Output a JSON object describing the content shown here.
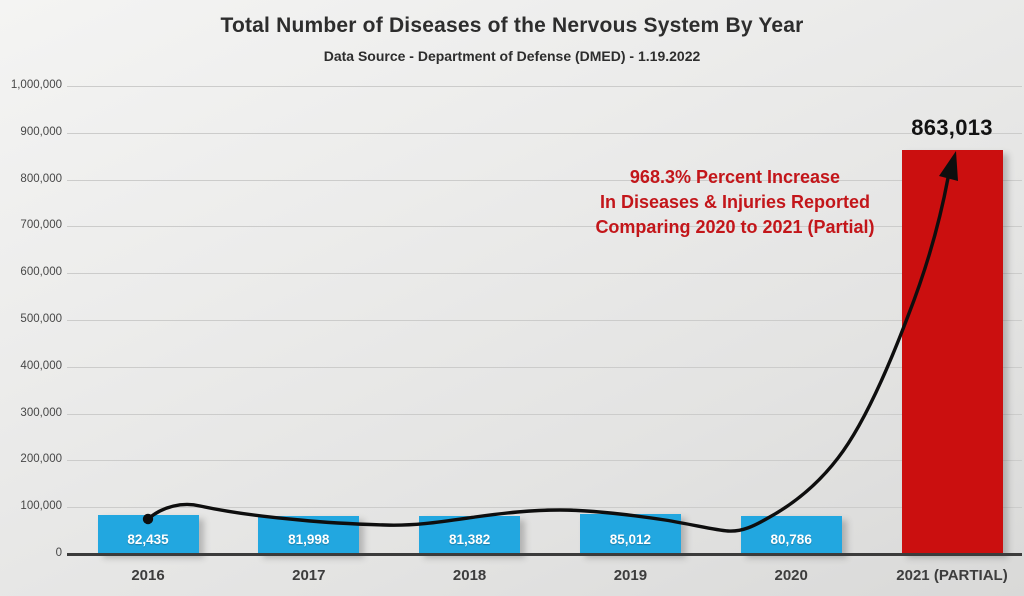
{
  "header": {
    "title": "Total Number of Diseases of the Nervous System By Year",
    "subtitle": "Data Source - Department of Defense (DMED) - 1.19.2022"
  },
  "annotation": {
    "line1": "968.3% Percent Increase",
    "line2": "In Diseases & Injuries Reported",
    "line3": "Comparing 2020 to 2021 (Partial)",
    "color": "#c3161a"
  },
  "peak_label": "863,013",
  "chart_data": {
    "type": "bar",
    "title": "Total Number of Diseases of the Nervous System By Year",
    "subtitle": "Data Source - Department of Defense (DMED) - 1.19.2022",
    "categories": [
      "2016",
      "2017",
      "2018",
      "2019",
      "2020",
      "2021 (PARTIAL)"
    ],
    "series": [
      {
        "name": "Diseases of the Nervous System",
        "values": [
          82435,
          81998,
          81382,
          85012,
          80786,
          863013
        ]
      }
    ],
    "bar_value_labels": [
      "82,435",
      "81,998",
      "81,382",
      "85,012",
      "80,786",
      ""
    ],
    "bar_colors": [
      "#22a7e0",
      "#22a7e0",
      "#22a7e0",
      "#22a7e0",
      "#22a7e0",
      "#cb0f0f"
    ],
    "peak_callout": "863,013",
    "ylim": [
      0,
      1000000
    ],
    "ytick_interval": 100000,
    "ytick_labels": [
      "1,000,000",
      "900,000",
      "800,000",
      "700,000",
      "600,000",
      "500,000",
      "400,000",
      "300,000",
      "200,000",
      "100,000",
      "0"
    ],
    "grid": true,
    "legend": "none",
    "trend_line": {
      "style": "curved-arrow",
      "color": "#0e0e0e",
      "start_marker": "dot",
      "end_marker": "arrowhead",
      "from_category": "2016",
      "to_category": "2021 (PARTIAL)"
    },
    "colors": {
      "blue_bar": "#22a7e0",
      "red_bar": "#cb0f0f",
      "annotation_red": "#c3161a",
      "background": "#e9e9e8",
      "gridline": "#cccccb",
      "baseline": "#3b3b3b"
    }
  }
}
